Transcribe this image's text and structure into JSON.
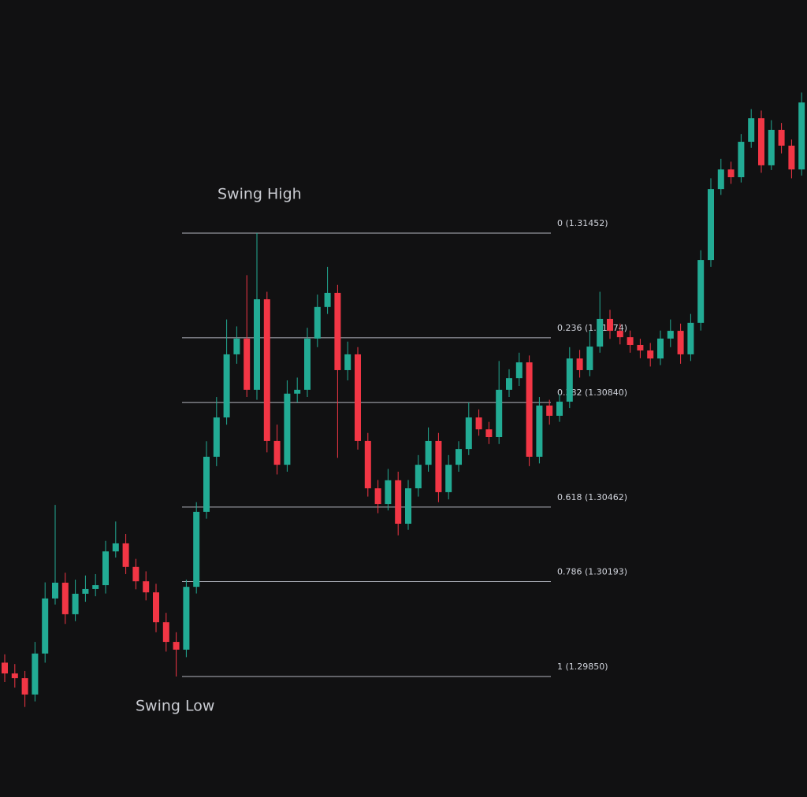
{
  "chart_data": {
    "type": "candlestick",
    "annotations": [
      {
        "text": "Swing High"
      },
      {
        "text": "Swing Low"
      }
    ],
    "up_color": "#22ab94",
    "down_color": "#f23645",
    "fib_color": "#b2b5be",
    "fib_levels": [
      {
        "label": "0 (1.31452)",
        "ratio": 0,
        "price": 1.31452
      },
      {
        "label": "0.236 (1.31074)",
        "ratio": 0.236,
        "price": 1.31074
      },
      {
        "label": "0.382 (1.30840)",
        "ratio": 0.382,
        "price": 1.3084
      },
      {
        "label": "0.618 (1.30462)",
        "ratio": 0.618,
        "price": 1.30462
      },
      {
        "label": "0.786 (1.30193)",
        "ratio": 0.786,
        "price": 1.30193
      },
      {
        "label": "1 (1.29850)",
        "ratio": 1,
        "price": 1.2985
      }
    ],
    "open": [
      1.299,
      1.29861,
      1.29844,
      1.29785,
      1.29933,
      1.30132,
      1.30189,
      1.30075,
      1.30149,
      1.30166,
      1.3018,
      1.30302,
      1.30331,
      1.30246,
      1.30194,
      1.30154,
      1.30046,
      1.29975,
      1.29947,
      1.30174,
      1.30445,
      1.30644,
      1.30786,
      1.31014,
      1.31071,
      1.30886,
      1.31213,
      1.30701,
      1.30615,
      1.30872,
      1.30886,
      1.31071,
      1.31185,
      1.31236,
      1.30957,
      1.31014,
      1.30701,
      1.3053,
      1.30473,
      1.30559,
      1.30402,
      1.3053,
      1.30615,
      1.30701,
      1.30516,
      1.30615,
      1.30672,
      1.30786,
      1.30743,
      1.30715,
      1.30886,
      1.30928,
      1.30985,
      1.30644,
      1.30829,
      1.30792,
      1.30843,
      1.30999,
      1.30957,
      1.31042,
      1.31142,
      1.31099,
      1.31076,
      1.31048,
      1.31028,
      1.30999,
      1.31071,
      1.31099,
      1.31014,
      1.31128,
      1.31355,
      1.31611,
      1.31682,
      1.31654,
      1.31782,
      1.31867,
      1.31697,
      1.31825,
      1.31768,
      1.31682
    ],
    "high": [
      1.2993,
      1.29895,
      1.2987,
      1.29975,
      1.3019,
      1.3047,
      1.30225,
      1.302,
      1.30215,
      1.3022,
      1.3034,
      1.3041,
      1.30365,
      1.30275,
      1.3023,
      1.30185,
      1.3008,
      1.3001,
      1.302,
      1.3048,
      1.307,
      1.3086,
      1.3114,
      1.31115,
      1.313,
      1.31452,
      1.3124,
      1.3076,
      1.3092,
      1.3093,
      1.3111,
      1.3123,
      1.3133,
      1.31265,
      1.3106,
      1.3104,
      1.3073,
      1.3056,
      1.306,
      1.3059,
      1.3056,
      1.3065,
      1.3075,
      1.3073,
      1.3065,
      1.307,
      1.3084,
      1.30815,
      1.3077,
      1.3099,
      1.3096,
      1.3102,
      1.3101,
      1.3086,
      1.3085,
      1.3087,
      1.3104,
      1.3103,
      1.311,
      1.3124,
      1.31175,
      1.31125,
      1.311,
      1.3107,
      1.31055,
      1.311,
      1.3114,
      1.31125,
      1.3116,
      1.3139,
      1.3165,
      1.3172,
      1.3171,
      1.3181,
      1.319,
      1.31895,
      1.3186,
      1.3185,
      1.3179,
      1.3196
    ],
    "low": [
      1.2983,
      1.2981,
      1.2974,
      1.2976,
      1.299,
      1.3011,
      1.3004,
      1.3005,
      1.3012,
      1.3014,
      1.3015,
      1.3028,
      1.3022,
      1.30165,
      1.30125,
      1.3001,
      1.2994,
      1.2985,
      1.2992,
      1.3015,
      1.3042,
      1.3061,
      1.3076,
      1.3098,
      1.3086,
      1.3085,
      1.3066,
      1.3058,
      1.3059,
      1.3084,
      1.3086,
      1.3104,
      1.3116,
      1.3064,
      1.3092,
      1.3067,
      1.305,
      1.3044,
      1.3045,
      1.3036,
      1.3038,
      1.305,
      1.3059,
      1.3048,
      1.3049,
      1.3059,
      1.3065,
      1.3072,
      1.3069,
      1.3069,
      1.3086,
      1.309,
      1.3061,
      1.3062,
      1.3076,
      1.3077,
      1.3082,
      1.3093,
      1.30935,
      1.3102,
      1.3107,
      1.3105,
      1.3102,
      1.31,
      1.3097,
      1.30975,
      1.3104,
      1.3098,
      1.3099,
      1.311,
      1.3133,
      1.3159,
      1.3163,
      1.31635,
      1.3176,
      1.3167,
      1.3168,
      1.3174,
      1.3165,
      1.3166
    ],
    "close": [
      1.29861,
      1.29844,
      1.29785,
      1.29933,
      1.30132,
      1.30189,
      1.30075,
      1.30149,
      1.30166,
      1.3018,
      1.30302,
      1.30331,
      1.30246,
      1.30194,
      1.30154,
      1.30046,
      1.29975,
      1.29947,
      1.30174,
      1.30445,
      1.30644,
      1.30786,
      1.31014,
      1.31071,
      1.30886,
      1.31213,
      1.30701,
      1.30615,
      1.30872,
      1.30886,
      1.31071,
      1.31185,
      1.31236,
      1.30957,
      1.31014,
      1.30701,
      1.3053,
      1.30473,
      1.30559,
      1.30402,
      1.3053,
      1.30615,
      1.30701,
      1.30516,
      1.30615,
      1.30672,
      1.30786,
      1.30743,
      1.30715,
      1.30886,
      1.30928,
      1.30985,
      1.30644,
      1.30829,
      1.30792,
      1.30843,
      1.30999,
      1.30957,
      1.31042,
      1.31142,
      1.31099,
      1.31076,
      1.31048,
      1.31028,
      1.30999,
      1.31071,
      1.31099,
      1.31014,
      1.31128,
      1.31355,
      1.31611,
      1.31682,
      1.31654,
      1.31782,
      1.31867,
      1.31697,
      1.31825,
      1.31768,
      1.31682,
      1.31924
    ]
  }
}
